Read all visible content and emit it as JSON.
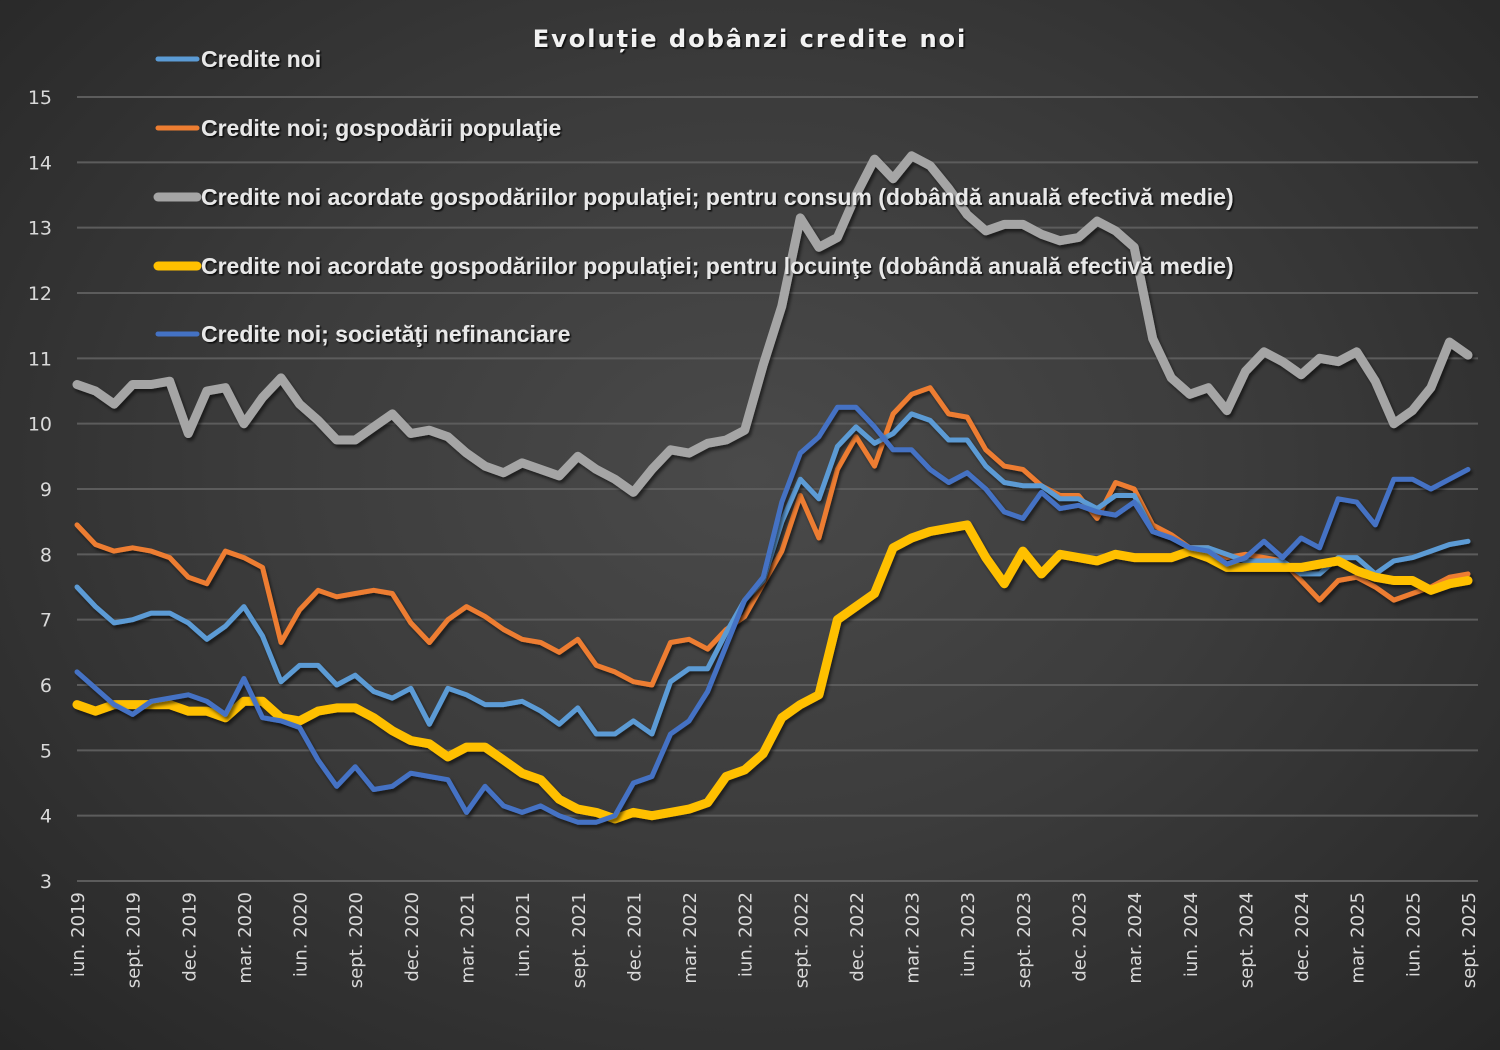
{
  "chart_data": {
    "type": "line",
    "title": "Evoluție dobânzi credite noi",
    "xlabel": "",
    "ylabel": "",
    "ylim": [
      3,
      15
    ],
    "yticks": [
      3,
      4,
      5,
      6,
      7,
      8,
      9,
      10,
      11,
      12,
      13,
      14,
      15
    ],
    "grid": true,
    "legend_position": "top-left",
    "x": [
      "iun. 2019",
      "iul. 2019",
      "aug. 2019",
      "sept. 2019",
      "oct. 2019",
      "nov. 2019",
      "dec. 2019",
      "ian. 2020",
      "feb. 2020",
      "mar. 2020",
      "apr. 2020",
      "mai 2020",
      "iun. 2020",
      "iul. 2020",
      "aug. 2020",
      "sept. 2020",
      "oct. 2020",
      "nov. 2020",
      "dec. 2020",
      "ian. 2021",
      "feb. 2021",
      "mar. 2021",
      "apr. 2021",
      "mai 2021",
      "iun. 2021",
      "iul. 2021",
      "aug. 2021",
      "sept. 2021",
      "oct. 2021",
      "nov. 2021",
      "dec. 2021",
      "ian. 2022",
      "feb. 2022",
      "mar. 2022",
      "apr. 2022",
      "mai 2022",
      "iun. 2022",
      "iul. 2022",
      "aug. 2022",
      "sept. 2022",
      "oct. 2022",
      "nov. 2022",
      "dec. 2022",
      "ian. 2023",
      "feb. 2023",
      "mar. 2023",
      "apr. 2023",
      "mai 2023",
      "iun. 2023",
      "iul. 2023",
      "aug. 2023",
      "sept. 2023",
      "oct. 2023",
      "nov. 2023",
      "dec. 2023",
      "ian. 2024",
      "feb. 2024",
      "mar. 2024",
      "apr. 2024",
      "mai 2024",
      "iun. 2024",
      "iul. 2024",
      "aug. 2024",
      "sept. 2024",
      "oct. 2024",
      "nov. 2024",
      "dec. 2024",
      "ian. 2025",
      "feb. 2025",
      "mar. 2025",
      "apr. 2025",
      "mai 2025",
      "iun. 2025",
      "iul. 2025",
      "aug. 2025",
      "sept. 2025"
    ],
    "xtick_labels": [
      "iun. 2019",
      "sept. 2019",
      "dec. 2019",
      "mar. 2020",
      "iun. 2020",
      "sept. 2020",
      "dec. 2020",
      "mar. 2021",
      "iun. 2021",
      "sept. 2021",
      "dec. 2021",
      "mar. 2022",
      "iun. 2022",
      "sept. 2022",
      "dec. 2022",
      "mar. 2023",
      "iun. 2023",
      "sept. 2023",
      "dec. 2023",
      "mar. 2024",
      "iun. 2024",
      "sept. 2024",
      "dec. 2024",
      "mar. 2025",
      "iun. 2025",
      "sept. 2025"
    ],
    "series": [
      {
        "name": "Credite noi",
        "color": "#5b9bd5",
        "values": [
          7.5,
          7.2,
          6.95,
          7.0,
          7.1,
          7.1,
          6.95,
          6.7,
          6.9,
          7.2,
          6.75,
          6.05,
          6.3,
          6.3,
          6.0,
          6.15,
          5.9,
          5.8,
          5.95,
          5.4,
          5.95,
          5.85,
          5.7,
          5.7,
          5.75,
          5.6,
          5.4,
          5.65,
          5.25,
          5.25,
          5.45,
          5.25,
          6.05,
          6.25,
          6.25,
          6.8,
          7.3,
          7.6,
          8.5,
          9.15,
          8.85,
          9.65,
          9.95,
          9.7,
          9.85,
          10.15,
          10.05,
          9.75,
          9.75,
          9.35,
          9.1,
          9.05,
          9.05,
          8.85,
          8.85,
          8.7,
          8.9,
          8.9,
          8.35,
          8.25,
          8.1,
          8.1,
          8.0,
          7.9,
          7.9,
          7.9,
          7.7,
          7.7,
          7.95,
          7.95,
          7.7,
          7.9,
          7.95,
          8.05,
          8.15,
          8.2
        ]
      },
      {
        "name": "Credite noi; gospodării populaţie",
        "color": "#ed7d31",
        "values": [
          8.45,
          8.15,
          8.05,
          8.1,
          8.05,
          7.95,
          7.65,
          7.55,
          8.05,
          7.95,
          7.8,
          6.65,
          7.15,
          7.45,
          7.35,
          7.4,
          7.45,
          7.4,
          6.95,
          6.65,
          7.0,
          7.2,
          7.05,
          6.85,
          6.7,
          6.65,
          6.5,
          6.7,
          6.3,
          6.2,
          6.05,
          6.0,
          6.65,
          6.7,
          6.55,
          6.85,
          7.05,
          7.55,
          8.05,
          8.9,
          8.25,
          9.3,
          9.8,
          9.35,
          10.15,
          10.45,
          10.55,
          10.15,
          10.1,
          9.6,
          9.35,
          9.3,
          9.05,
          8.9,
          8.9,
          8.55,
          9.1,
          9.0,
          8.45,
          8.3,
          8.1,
          8.1,
          7.95,
          8.0,
          7.95,
          7.9,
          7.6,
          7.3,
          7.6,
          7.65,
          7.5,
          7.3,
          7.4,
          7.5,
          7.65,
          7.7
        ]
      },
      {
        "name": "Credite noi acordate gospodăriilor populaţiei; pentru consum (dobândă anuală efectivă medie)",
        "color": "#a5a5a5",
        "values": [
          10.6,
          10.5,
          10.3,
          10.6,
          10.6,
          10.65,
          9.85,
          10.5,
          10.55,
          10.0,
          10.4,
          10.7,
          10.3,
          10.05,
          9.75,
          9.75,
          9.95,
          10.15,
          9.85,
          9.9,
          9.8,
          9.55,
          9.35,
          9.25,
          9.4,
          9.3,
          9.2,
          9.5,
          9.3,
          9.15,
          8.95,
          9.3,
          9.6,
          9.55,
          9.7,
          9.75,
          9.9,
          10.9,
          11.8,
          13.15,
          12.7,
          12.85,
          13.5,
          14.05,
          13.75,
          14.1,
          13.95,
          13.6,
          13.2,
          12.95,
          13.05,
          13.05,
          12.9,
          12.8,
          12.85,
          13.1,
          12.95,
          12.7,
          11.3,
          10.7,
          10.45,
          10.55,
          10.2,
          10.8,
          11.1,
          10.95,
          10.75,
          11.0,
          10.95,
          11.1,
          10.65,
          10.0,
          10.2,
          10.55,
          11.25,
          11.05
        ]
      },
      {
        "name": "Credite noi acordate gospodăriilor populaţiei; pentru locuinţe (dobândă anuală efectivă medie)",
        "color": "#ffc000",
        "values": [
          5.7,
          5.6,
          5.7,
          5.7,
          5.7,
          5.7,
          5.6,
          5.6,
          5.5,
          5.75,
          5.75,
          5.5,
          5.45,
          5.6,
          5.65,
          5.65,
          5.5,
          5.3,
          5.15,
          5.1,
          4.9,
          5.05,
          5.05,
          4.85,
          4.65,
          4.55,
          4.25,
          4.1,
          4.05,
          3.95,
          4.05,
          4.0,
          4.05,
          4.1,
          4.2,
          4.6,
          4.7,
          4.95,
          5.5,
          5.7,
          5.85,
          7.0,
          7.2,
          7.4,
          8.1,
          8.25,
          8.35,
          8.4,
          8.45,
          7.95,
          7.55,
          8.05,
          7.7,
          8.0,
          7.95,
          7.9,
          8.0,
          7.95,
          7.95,
          7.95,
          8.05,
          7.95,
          7.8,
          7.8,
          7.8,
          7.8,
          7.8,
          7.85,
          7.9,
          7.75,
          7.65,
          7.6,
          7.6,
          7.45,
          7.55,
          7.6
        ]
      },
      {
        "name": "Credite noi; societăţi nefinanciare",
        "color": "#4472c4",
        "values": [
          6.2,
          5.95,
          5.7,
          5.55,
          5.75,
          5.8,
          5.85,
          5.75,
          5.55,
          6.1,
          5.5,
          5.45,
          5.35,
          4.85,
          4.45,
          4.75,
          4.4,
          4.45,
          4.65,
          4.6,
          4.55,
          4.05,
          4.45,
          4.15,
          4.05,
          4.15,
          4.0,
          3.9,
          3.9,
          4.0,
          4.5,
          4.6,
          5.25,
          5.45,
          5.9,
          6.6,
          7.3,
          7.65,
          8.8,
          9.55,
          9.8,
          10.25,
          10.25,
          9.95,
          9.6,
          9.6,
          9.3,
          9.1,
          9.25,
          9.0,
          8.65,
          8.55,
          8.95,
          8.7,
          8.75,
          8.65,
          8.6,
          8.8,
          8.35,
          8.25,
          8.1,
          8.05,
          7.85,
          7.95,
          8.2,
          7.95,
          8.25,
          8.1,
          8.85,
          8.8,
          8.45,
          9.15,
          9.15,
          9.0,
          9.15,
          9.3
        ]
      }
    ]
  }
}
